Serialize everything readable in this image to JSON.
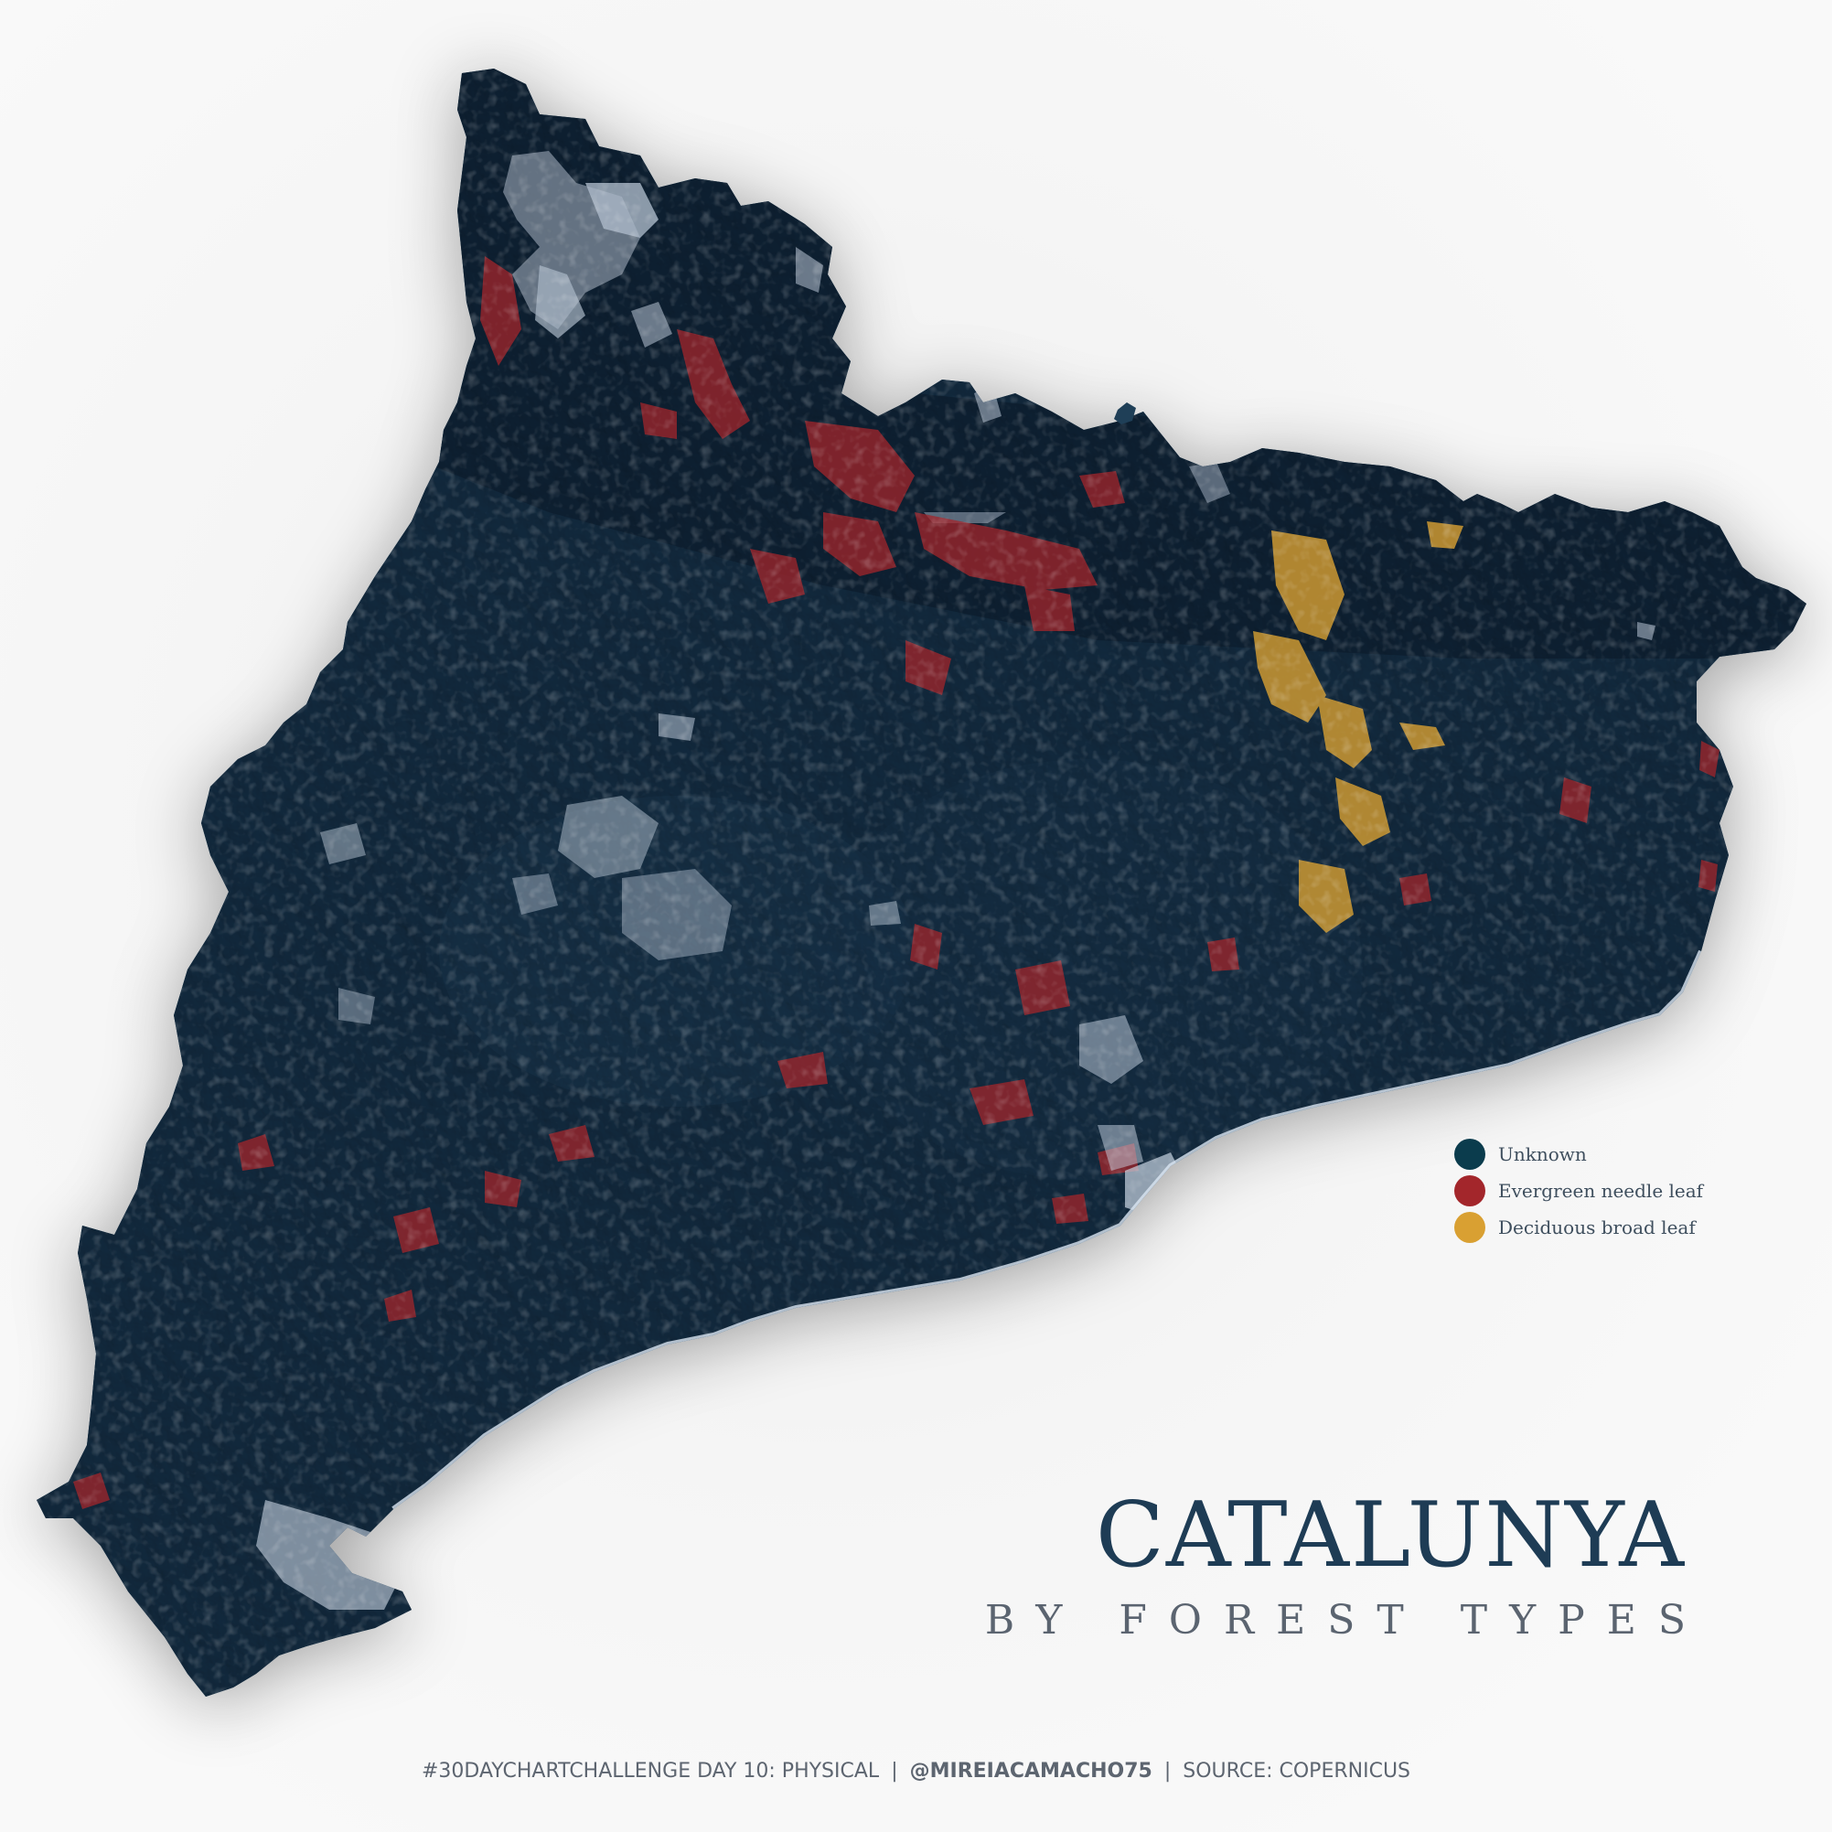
{
  "map": {
    "colors": {
      "terrain": "#1f3f57",
      "terrain_dark": "#14293a",
      "evergreen_needle_leaf": "#a3262b",
      "deciduous_broad_leaf": "#d9a032",
      "urban_snow": "#c8d4e3",
      "background": "#f7f7f7"
    }
  },
  "legend": {
    "items": [
      {
        "label": "Unknown",
        "color": "#0b3c4d"
      },
      {
        "label": "Evergreen needle leaf",
        "color": "#a3262b"
      },
      {
        "label": "Deciduous broad leaf",
        "color": "#d9a032"
      }
    ]
  },
  "title": {
    "main": "CATALUNYA",
    "sub": "BY FOREST TYPES",
    "color": "#1e3c55",
    "sub_color": "#5b6470"
  },
  "footer": {
    "challenge": "#30DAYCHARTCHALLENGE DAY 10: PHYSICAL",
    "handle": "@MIREIACAMACHO75",
    "source": "SOURCE: COPERNICUS",
    "separator": "|"
  }
}
